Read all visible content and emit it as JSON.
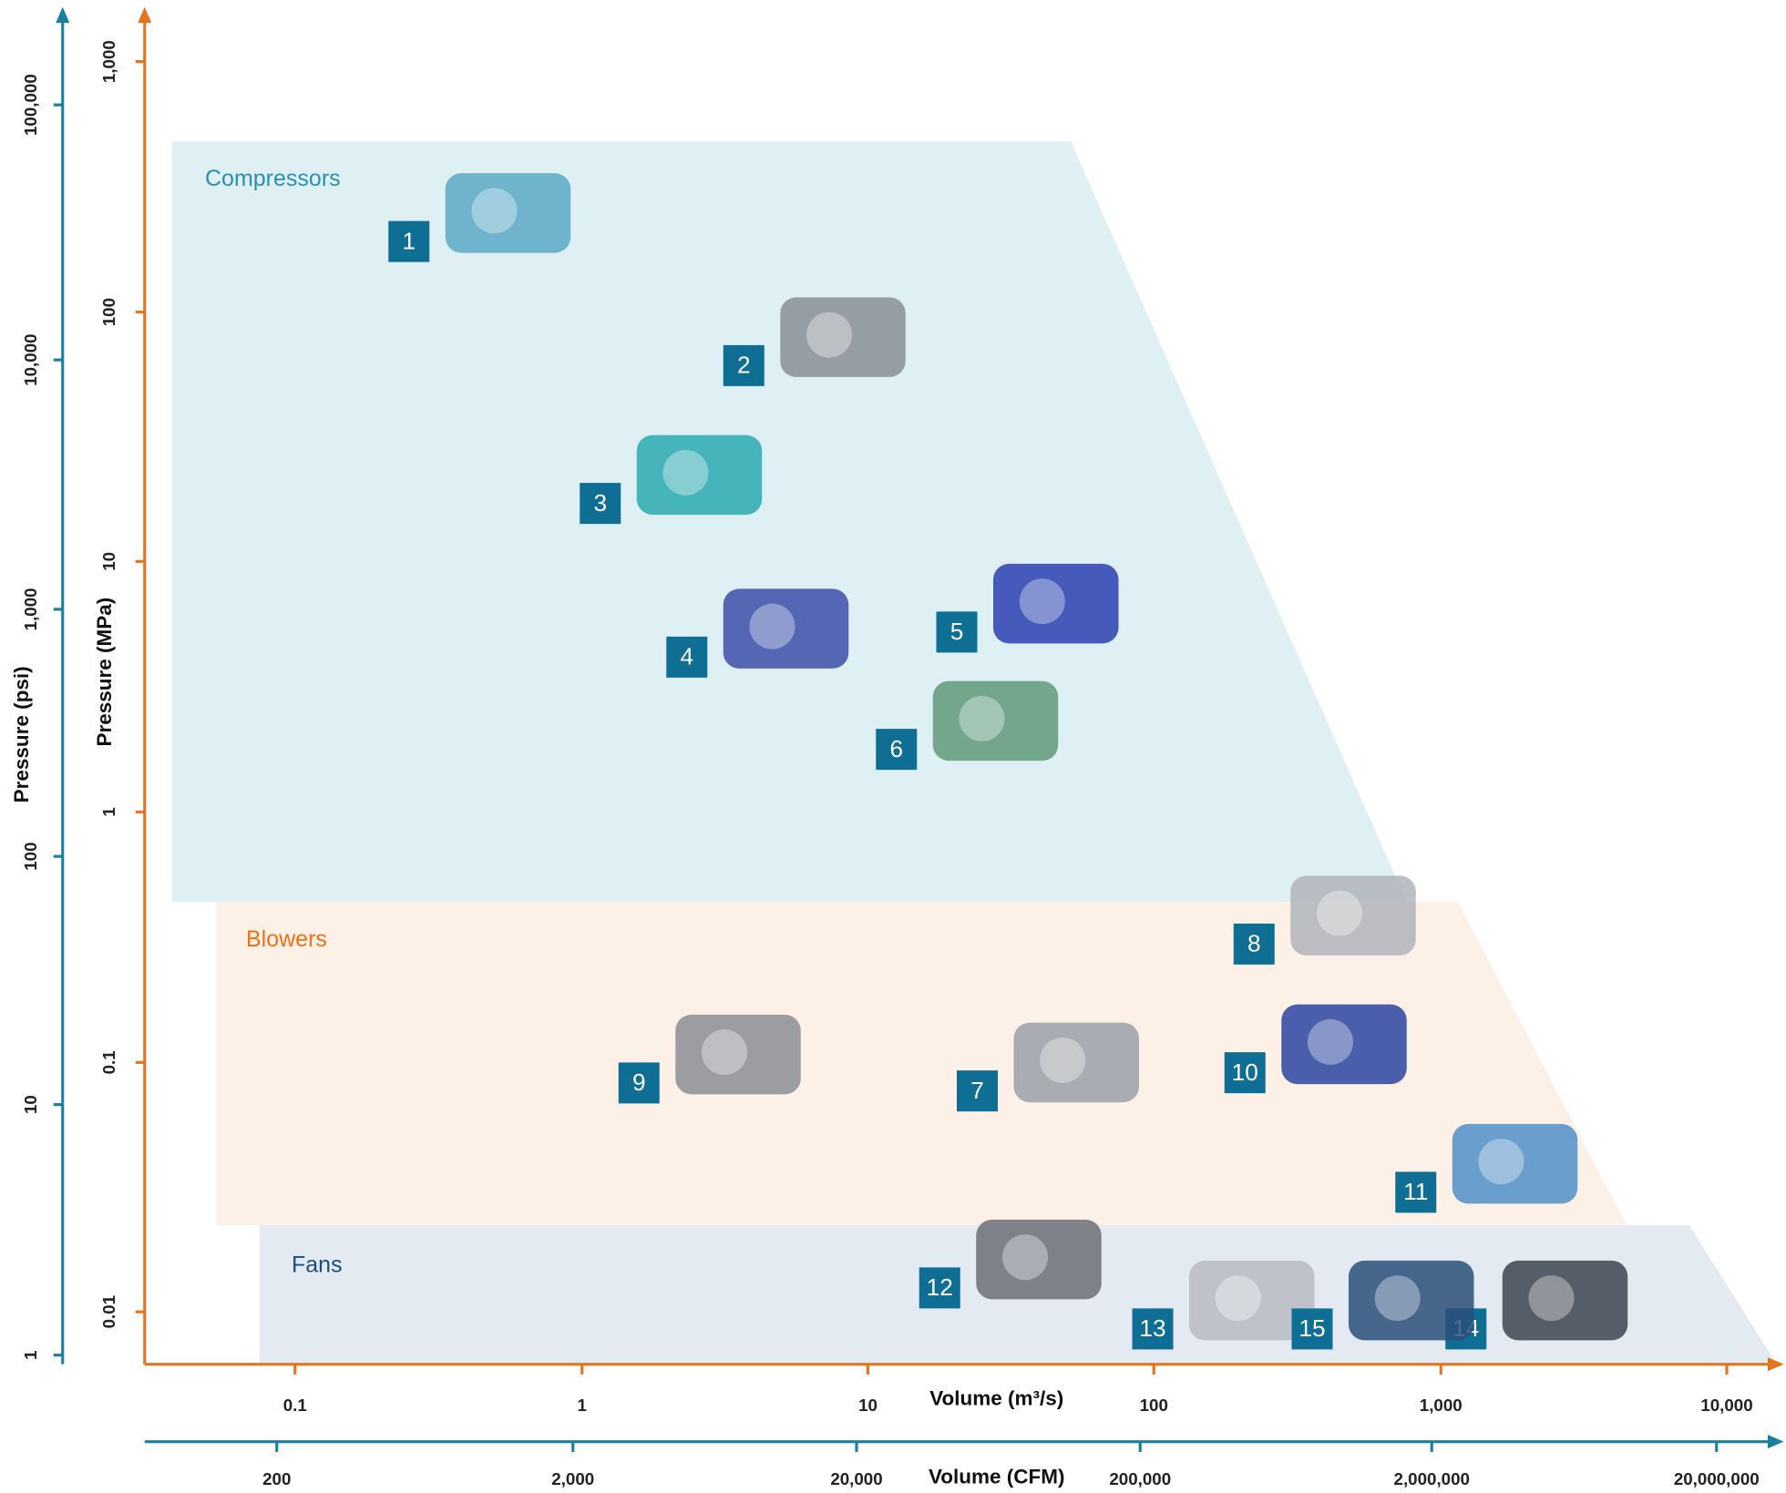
{
  "axes": {
    "y_psi": {
      "label": "Pressure (psi)",
      "ticks": [
        "1",
        "10",
        "100",
        "1,000",
        "10,000",
        "100,000"
      ]
    },
    "y_mpa": {
      "label": "Pressure (MPa)",
      "ticks": [
        "0.01",
        "0.1",
        "1",
        "10",
        "100",
        "1,000"
      ]
    },
    "x_m3s": {
      "label": "Volume (m³/s)",
      "ticks": [
        "0.1",
        "1",
        "10",
        "100",
        "1,000",
        "10,000"
      ]
    },
    "x_cfm": {
      "label": "Volume (CFM)",
      "ticks": [
        "200",
        "2,000",
        "20,000",
        "200,000",
        "2,000,000",
        "20,000,000"
      ]
    }
  },
  "regions": [
    {
      "label": "Compressors"
    },
    {
      "label": "Blowers"
    },
    {
      "label": "Fans"
    }
  ],
  "machines": [
    {
      "label": "1"
    },
    {
      "label": "2"
    },
    {
      "label": "3"
    },
    {
      "label": "4"
    },
    {
      "label": "5"
    },
    {
      "label": "6"
    },
    {
      "label": "7"
    },
    {
      "label": "8"
    },
    {
      "label": "9"
    },
    {
      "label": "10"
    },
    {
      "label": "11"
    },
    {
      "label": "12"
    },
    {
      "label": "13"
    },
    {
      "label": "14"
    },
    {
      "label": "15"
    }
  ]
}
